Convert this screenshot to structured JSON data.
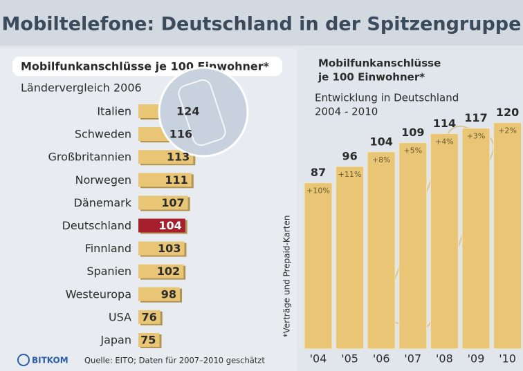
{
  "title": "Mobiltelefone: Deutschland in der Spitzengruppe",
  "footer": {
    "logo": "BITKOM",
    "source": "Quelle: EITO; Daten für 2007–2010 geschätzt"
  },
  "chart_data": [
    {
      "type": "bar",
      "orientation": "horizontal",
      "title": "Mobilfunkanschlüsse je 100 Einwohner*",
      "subtitle": "Ländervergleich 2006",
      "categories": [
        "Italien",
        "Schweden",
        "Großbritannien",
        "Norwegen",
        "Dänemark",
        "Deutschland",
        "Finnland",
        "Spanien",
        "Westeuropa",
        "USA",
        "Japan"
      ],
      "values": [
        124,
        116,
        113,
        111,
        107,
        104,
        103,
        102,
        98,
        76,
        75
      ],
      "colors": [
        "#e8c676",
        "#e8c676",
        "#e8c676",
        "#e8c676",
        "#e8c676",
        "#a71f2c",
        "#e8c676",
        "#e8c676",
        "#e8c676",
        "#e8c676",
        "#e8c676"
      ],
      "note": "*Verträge und Prepaid-Karten"
    },
    {
      "type": "bar",
      "orientation": "vertical",
      "title": [
        "Mobilfunkanschlüsse",
        "je 100 Einwohner*"
      ],
      "subtitle": [
        "Entwicklung in Deutschland",
        "2004 - 2010"
      ],
      "categories": [
        "'04",
        "'05",
        "'06",
        "'07",
        "'08",
        "'09",
        "'10"
      ],
      "values": [
        87,
        96,
        104,
        109,
        114,
        117,
        120
      ],
      "change_labels": [
        "+10%",
        "+11%",
        "+8%",
        "+5%",
        "+4%",
        "+3%",
        "+2%"
      ],
      "color": "#e8c676"
    }
  ]
}
